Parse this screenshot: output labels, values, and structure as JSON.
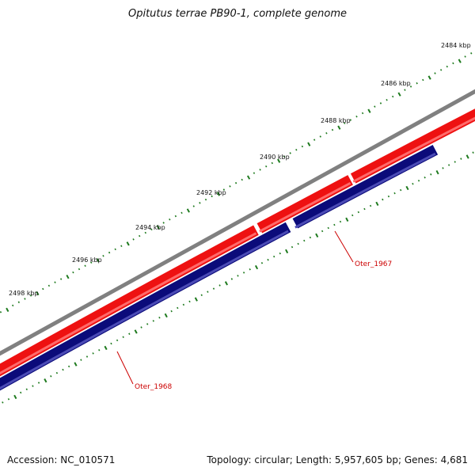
{
  "title": "Opitutus terrae PB90-1, complete genome",
  "footer": {
    "accession": "Accession: NC_010571",
    "topology": "Topology: circular; Length: 5,957,605 bp; Genes: 4,681"
  },
  "scale_labels": [
    "2484 kbp",
    "2486 kbp",
    "2488 kbp",
    "2490 kbp",
    "2492 kbp",
    "2494 kbp",
    "2496 kbp",
    "2498 kbp"
  ],
  "gene_labels": [
    "Oter_1967",
    "Oter_1968"
  ],
  "colors": {
    "backbone": "#808080",
    "forward_gene": "#ee1111",
    "reverse_gene": "#0b0b7a",
    "ticks": "#1e7a1e",
    "gene_label": "#cc0000"
  }
}
